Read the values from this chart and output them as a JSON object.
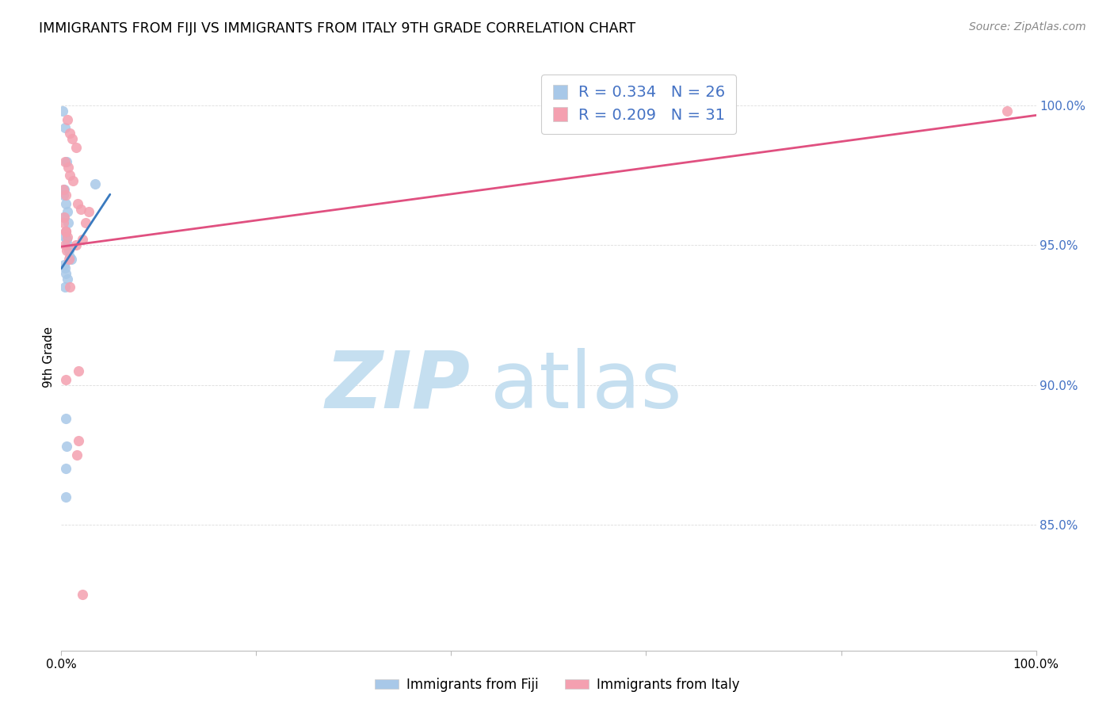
{
  "title": "IMMIGRANTS FROM FIJI VS IMMIGRANTS FROM ITALY 9TH GRADE CORRELATION CHART",
  "source": "Source: ZipAtlas.com",
  "ylabel": "9th Grade",
  "x_range": [
    0.0,
    100.0
  ],
  "y_range": [
    80.5,
    101.5
  ],
  "fiji_R": 0.334,
  "fiji_N": 26,
  "italy_R": 0.209,
  "italy_N": 31,
  "fiji_color": "#a8c8e8",
  "italy_color": "#f4a0b0",
  "fiji_line_color": "#3a7abf",
  "italy_line_color": "#e05080",
  "fiji_scatter": [
    [
      0.15,
      99.8
    ],
    [
      0.35,
      99.2
    ],
    [
      0.55,
      98.0
    ],
    [
      3.5,
      97.2
    ],
    [
      0.3,
      97.0
    ],
    [
      0.2,
      96.8
    ],
    [
      0.45,
      96.5
    ],
    [
      0.6,
      96.2
    ],
    [
      0.25,
      96.0
    ],
    [
      0.7,
      95.8
    ],
    [
      0.5,
      95.5
    ],
    [
      0.4,
      95.3
    ],
    [
      0.55,
      95.2
    ],
    [
      0.65,
      95.0
    ],
    [
      0.8,
      94.8
    ],
    [
      0.9,
      94.6
    ],
    [
      1.0,
      94.5
    ],
    [
      0.3,
      94.3
    ],
    [
      0.4,
      94.2
    ],
    [
      0.5,
      94.0
    ],
    [
      0.6,
      93.8
    ],
    [
      0.35,
      93.5
    ],
    [
      0.45,
      88.8
    ],
    [
      0.55,
      87.8
    ],
    [
      0.45,
      87.0
    ],
    [
      0.5,
      86.0
    ]
  ],
  "italy_scatter": [
    [
      0.6,
      99.5
    ],
    [
      0.9,
      99.0
    ],
    [
      1.1,
      98.8
    ],
    [
      1.5,
      98.5
    ],
    [
      0.4,
      98.0
    ],
    [
      0.7,
      97.8
    ],
    [
      0.85,
      97.5
    ],
    [
      1.2,
      97.3
    ],
    [
      0.25,
      97.0
    ],
    [
      0.5,
      96.8
    ],
    [
      1.7,
      96.5
    ],
    [
      2.0,
      96.3
    ],
    [
      0.3,
      96.0
    ],
    [
      0.2,
      95.8
    ],
    [
      0.45,
      95.5
    ],
    [
      0.65,
      95.3
    ],
    [
      0.35,
      95.0
    ],
    [
      0.55,
      94.8
    ],
    [
      0.75,
      94.5
    ],
    [
      1.5,
      95.0
    ],
    [
      2.2,
      95.2
    ],
    [
      0.9,
      93.5
    ],
    [
      1.8,
      90.5
    ],
    [
      0.5,
      90.2
    ],
    [
      1.8,
      88.0
    ],
    [
      1.6,
      87.5
    ],
    [
      0.45,
      95.5
    ],
    [
      2.5,
      95.8
    ],
    [
      2.8,
      96.2
    ],
    [
      2.2,
      82.5
    ],
    [
      97.0,
      99.8
    ]
  ],
  "watermark_zip": "ZIP",
  "watermark_atlas": "atlas",
  "watermark_color_zip": "#c5dff0",
  "watermark_color_atlas": "#c5dff0",
  "grid_color": "#dddddd",
  "y_ticks": [
    85.0,
    90.0,
    95.0,
    100.0
  ],
  "y_tick_labels": [
    "85.0%",
    "90.0%",
    "95.0%",
    "100.0%"
  ],
  "tick_color": "#4472c4"
}
